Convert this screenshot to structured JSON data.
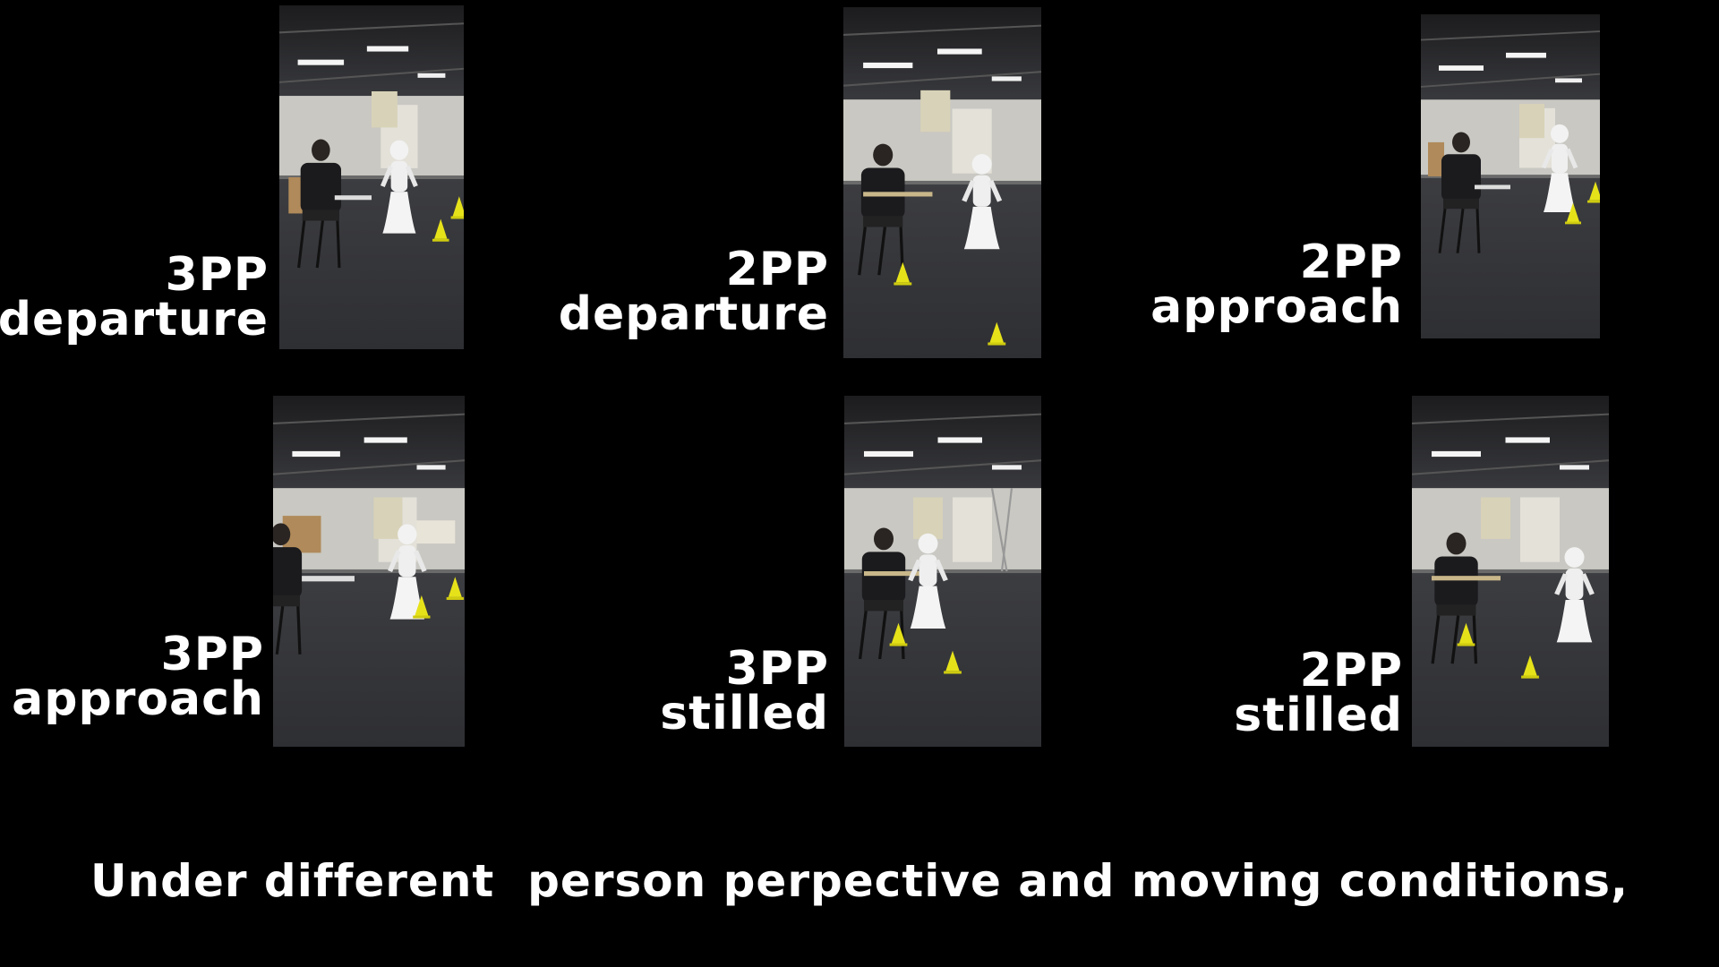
{
  "panels": [
    {
      "perspective": "3PP",
      "condition": "departure"
    },
    {
      "perspective": "2PP",
      "condition": "departure"
    },
    {
      "perspective": "2PP",
      "condition": "approach"
    },
    {
      "perspective": "3PP",
      "condition": "approach"
    },
    {
      "perspective": "3PP",
      "condition": "stilled"
    },
    {
      "perspective": "2PP",
      "condition": "stilled"
    }
  ],
  "caption": "Under different  person perpective and moving conditions,"
}
